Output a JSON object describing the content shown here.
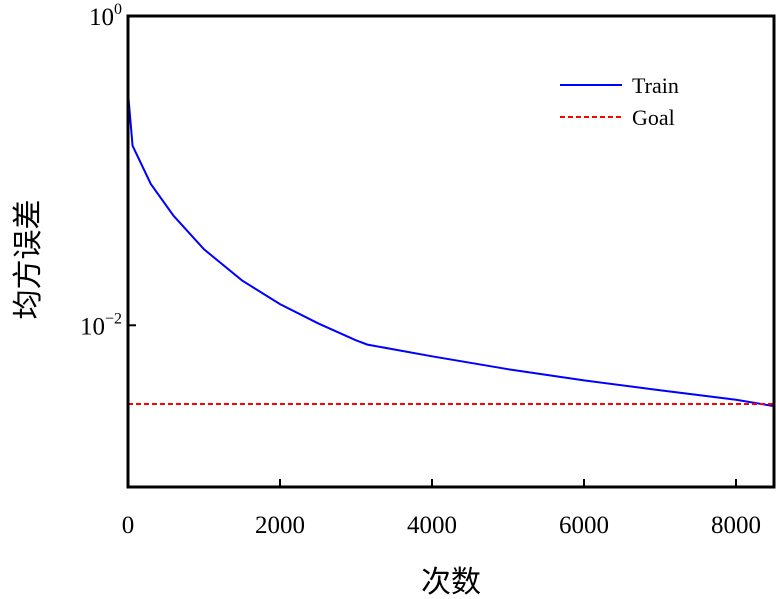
{
  "chart_data": {
    "type": "line",
    "title": "",
    "xlabel": "次数",
    "ylabel": "均方误差",
    "xlim": [
      0,
      8500
    ],
    "ylim": [
      0.0009,
      1
    ],
    "yscale": "log",
    "x_ticks": [
      0,
      2000,
      4000,
      6000,
      8000
    ],
    "x_tick_labels": [
      "0",
      "2000",
      "4000",
      "6000",
      "8000"
    ],
    "y_ticks": [
      {
        "value": 1,
        "base": "10",
        "exponent": "0"
      },
      {
        "value": 0.01,
        "base": "10",
        "exponent": "−2"
      }
    ],
    "grid": false,
    "legend_position": "top-right",
    "series": [
      {
        "name": "Train",
        "color": "#0000ff",
        "style": "solid",
        "x": [
          0,
          60,
          300,
          600,
          1000,
          1500,
          2000,
          2500,
          3000,
          3150,
          4000,
          5000,
          6000,
          7000,
          8000,
          8500
        ],
        "y": [
          0.32,
          0.145,
          0.082,
          0.051,
          0.031,
          0.0195,
          0.0137,
          0.0103,
          0.008,
          0.0075,
          0.0063,
          0.0052,
          0.0044,
          0.0038,
          0.0033,
          0.003
        ]
      },
      {
        "name": "Goal",
        "color": "#ff0000",
        "style": "dashed",
        "x": [
          0,
          8500
        ],
        "y": [
          0.0031,
          0.0031
        ]
      }
    ]
  }
}
